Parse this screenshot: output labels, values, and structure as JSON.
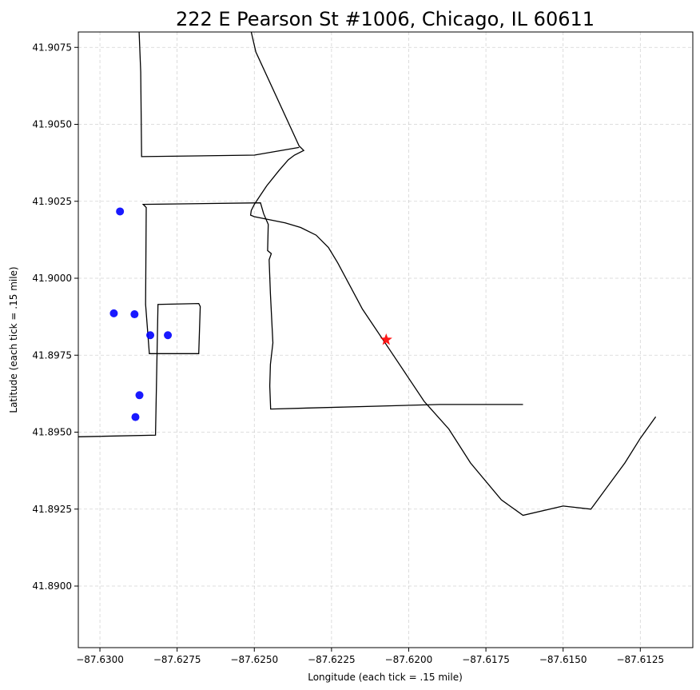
{
  "chart_data": {
    "type": "scatter",
    "title": "222 E Pearson St #1006, Chicago, IL 60611",
    "xlabel": "Longitude (each tick = .15 mile)",
    "ylabel": "Latitude (each tick = .15 mile)",
    "xlim": [
      -87.6307,
      -87.6108
    ],
    "ylim": [
      41.888,
      41.908
    ],
    "grid": true,
    "xticks": [
      -87.63,
      -87.6275,
      -87.625,
      -87.6225,
      -87.62,
      -87.6175,
      -87.615,
      -87.6125
    ],
    "xtick_labels": [
      "−87.6300",
      "−87.6275",
      "−87.6250",
      "−87.6225",
      "−87.6200",
      "−87.6175",
      "−87.6150",
      "−87.6125"
    ],
    "yticks": [
      41.89,
      41.8925,
      41.895,
      41.8975,
      41.9,
      41.9025,
      41.905,
      41.9075
    ],
    "ytick_labels": [
      "41.8900",
      "41.8925",
      "41.8950",
      "41.8975",
      "41.9000",
      "41.9025",
      "41.9050",
      "41.9075"
    ],
    "points": [
      {
        "x": -87.62935,
        "y": 41.90217
      },
      {
        "x": -87.62955,
        "y": 41.89886
      },
      {
        "x": -87.62888,
        "y": 41.89883
      },
      {
        "x": -87.62837,
        "y": 41.89815
      },
      {
        "x": -87.6278,
        "y": 41.89815
      },
      {
        "x": -87.62872,
        "y": 41.8962
      },
      {
        "x": -87.62885,
        "y": 41.89549
      }
    ],
    "points_color": "#0000ff",
    "target": {
      "x": -87.62073,
      "y": 41.898,
      "color": "#ff0000",
      "marker": "star"
    },
    "boundaries": [
      [
        [
          -87.62873,
          41.908
        ],
        [
          -87.62868,
          41.9067
        ],
        [
          -87.62865,
          41.90395
        ],
        [
          -87.625,
          41.904
        ],
        [
          -87.62355,
          41.90425
        ]
      ],
      [
        [
          -87.6251,
          41.908
        ],
        [
          -87.62495,
          41.90735
        ],
        [
          -87.62355,
          41.9043
        ],
        [
          -87.6234,
          41.90415
        ],
        [
          -87.6237,
          41.904
        ],
        [
          -87.6239,
          41.90385
        ],
        [
          -87.6242,
          41.9035
        ],
        [
          -87.6246,
          41.903
        ],
        [
          -87.6248,
          41.9027
        ],
        [
          -87.625,
          41.9024
        ],
        [
          -87.6251,
          41.9022
        ],
        [
          -87.62512,
          41.90205
        ],
        [
          -87.625,
          41.902
        ],
        [
          -87.624,
          41.9018
        ],
        [
          -87.6235,
          41.90165
        ],
        [
          -87.623,
          41.9014
        ],
        [
          -87.6226,
          41.901
        ],
        [
          -87.6223,
          41.9005
        ],
        [
          -87.6215,
          41.899
        ],
        [
          -87.6205,
          41.8975
        ],
        [
          -87.6195,
          41.896
        ],
        [
          -87.6187,
          41.8951
        ],
        [
          -87.618,
          41.894
        ],
        [
          -87.617,
          41.8928
        ],
        [
          -87.6163,
          41.8923
        ],
        [
          -87.615,
          41.8926
        ],
        [
          -87.6141,
          41.8925
        ],
        [
          -87.613,
          41.894
        ],
        [
          -87.6125,
          41.8948
        ],
        [
          -87.612,
          41.8955
        ]
      ],
      [
        [
          -87.6307,
          41.89485
        ],
        [
          -87.6282,
          41.8949
        ],
        [
          -87.62812,
          41.89915
        ],
        [
          -87.6268,
          41.89918
        ],
        [
          -87.62675,
          41.89908
        ],
        [
          -87.6268,
          41.89755
        ],
        [
          -87.6284,
          41.89755
        ],
        [
          -87.62852,
          41.89915
        ],
        [
          -87.6285,
          41.9023
        ],
        [
          -87.6286,
          41.9024
        ],
        [
          -87.6248,
          41.90245
        ],
        [
          -87.6247,
          41.9021
        ],
        [
          -87.62455,
          41.90175
        ],
        [
          -87.62457,
          41.9009
        ],
        [
          -87.62445,
          41.9008
        ],
        [
          -87.62452,
          41.9006
        ],
        [
          -87.62448,
          41.8995
        ],
        [
          -87.6244,
          41.8979
        ],
        [
          -87.62448,
          41.8972
        ],
        [
          -87.6245,
          41.8965
        ],
        [
          -87.62447,
          41.89575
        ],
        [
          -87.619,
          41.8959
        ],
        [
          -87.6163,
          41.8959
        ]
      ]
    ]
  }
}
